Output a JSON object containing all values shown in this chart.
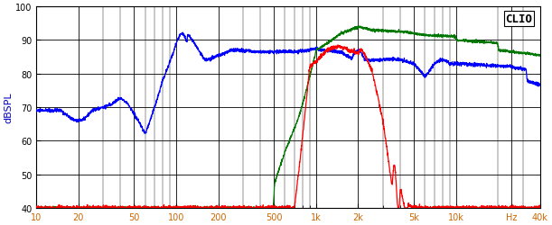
{
  "title": "CLIO",
  "ylabel": "dBSPL",
  "xlabel_ticks": [
    "10",
    "20",
    "50",
    "100",
    "200",
    "500",
    "1k",
    "2k",
    "5k",
    "10k",
    "Hz",
    "40k"
  ],
  "xlabel_tick_vals": [
    10,
    20,
    50,
    100,
    200,
    500,
    1000,
    2000,
    5000,
    10000,
    25000,
    40000
  ],
  "ylim": [
    40,
    100
  ],
  "xlim": [
    10,
    40000
  ],
  "yticks": [
    40,
    50,
    60,
    70,
    80,
    90,
    100
  ],
  "background_color": "#ffffff",
  "grid_color": "#000000",
  "line_color_blue": "#0000ff",
  "line_color_red": "#ff0000",
  "line_color_green": "#007700",
  "title_color": "#000000",
  "ylabel_color": "#0000bb",
  "tick_color": "#cc6600",
  "ytick_color": "#000000"
}
